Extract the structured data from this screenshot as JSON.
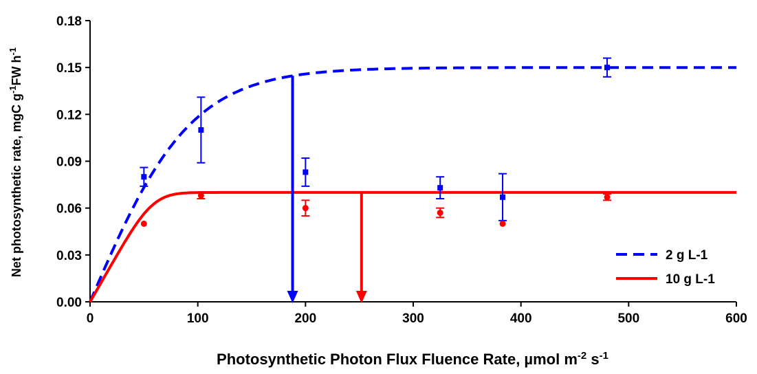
{
  "chart_data": {
    "type": "scatter",
    "xlabel": {
      "main": "Photosynthetic Photon Flux Fluence Rate, µmol m",
      "sup1": "-2",
      "mid": " s",
      "sup2": "-1"
    },
    "ylabel": {
      "main": "Net photosynthetic rate, mgC g",
      "sup1": "-1",
      "mid": "FW h",
      "sup2": "-1"
    },
    "xlim": [
      0,
      600
    ],
    "ylim": [
      0,
      0.18
    ],
    "xticks": [
      "0",
      "100",
      "200",
      "300",
      "400",
      "500",
      "600"
    ],
    "yticks": [
      "0.00",
      "0.03",
      "0.06",
      "0.09",
      "0.12",
      "0.15",
      "0.18"
    ],
    "grid": false,
    "legend_position": "bottom-right",
    "series": [
      {
        "name": "2 g L-1",
        "color": "#0000ff",
        "line_style": "dashed",
        "marker": "square",
        "fit": {
          "max": 0.15,
          "initial_slope": 0.0016
        },
        "points": [
          {
            "x": 50,
            "y": 0.08,
            "err": 0.006
          },
          {
            "x": 103,
            "y": 0.11,
            "err": 0.021
          },
          {
            "x": 200,
            "y": 0.083,
            "err": 0.009
          },
          {
            "x": 325,
            "y": 0.073,
            "err": 0.007
          },
          {
            "x": 383,
            "y": 0.067,
            "err": 0.015
          },
          {
            "x": 480,
            "y": 0.15,
            "err": 0.006
          }
        ],
        "threshold_arrow_x": 188
      },
      {
        "name": "10 g L-1",
        "color": "#ff0000",
        "line_style": "solid",
        "marker": "circle",
        "fit": {
          "max": 0.07,
          "initial_slope": 0.0012,
          "shape": 2.3
        },
        "points": [
          {
            "x": 50,
            "y": 0.05,
            "err": 0.0
          },
          {
            "x": 103,
            "y": 0.068,
            "err": 0.002
          },
          {
            "x": 200,
            "y": 0.06,
            "err": 0.005
          },
          {
            "x": 325,
            "y": 0.057,
            "err": 0.003
          },
          {
            "x": 383,
            "y": 0.05,
            "err": 0.0
          },
          {
            "x": 480,
            "y": 0.067,
            "err": 0.002
          }
        ],
        "threshold_arrow_x": 252
      }
    ]
  }
}
